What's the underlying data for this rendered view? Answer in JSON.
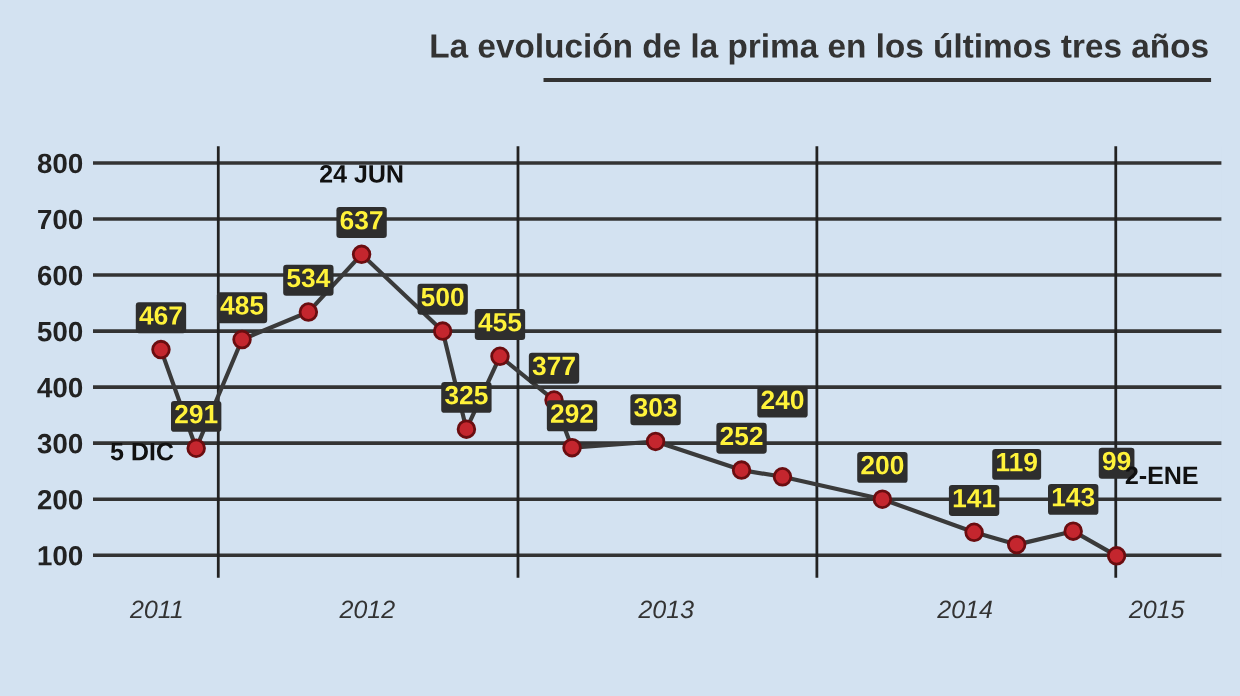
{
  "chart_data": {
    "type": "line",
    "title": "La evolución de la prima en los últimos tres años",
    "x": [
      "2011-10-23",
      "2011-12-05",
      "2012-01-30",
      "2012-04-20",
      "2012-06-24",
      "2012-10-01",
      "2012-10-30",
      "2012-12-10",
      "2013-02-14",
      "2013-03-08",
      "2013-06-18",
      "2013-10-01",
      "2013-11-20",
      "2014-03-22",
      "2014-07-12",
      "2014-09-02",
      "2014-11-10",
      "2015-01-02"
    ],
    "series": [
      {
        "color": "#3a3a3a",
        "values": [
          467,
          291,
          485,
          534,
          637,
          500,
          325,
          455,
          377,
          292,
          303,
          252,
          240,
          200,
          141,
          119,
          143,
          99
        ]
      }
    ],
    "data_labels": true,
    "marker": "circle",
    "line_style": "solid",
    "ylim": [
      60,
      830
    ],
    "yticks": [
      100,
      200,
      300,
      400,
      500,
      600,
      700,
      800
    ],
    "xlim": [
      "2011-08-01",
      "2015-05-10"
    ],
    "xticks": [
      {
        "value": "2011-10-18",
        "label": "2011"
      },
      {
        "value": "2012-07-01",
        "label": "2012"
      },
      {
        "value": "2013-07-01",
        "label": "2013"
      },
      {
        "value": "2014-07-01",
        "label": "2014"
      },
      {
        "value": "2015-02-20",
        "label": "2015"
      }
    ],
    "ref_lines": [
      {
        "axis": "x",
        "value": "2012-01-01",
        "color": "#222222"
      },
      {
        "axis": "x",
        "value": "2013-01-01",
        "color": "#222222"
      },
      {
        "axis": "x",
        "value": "2014-01-01",
        "color": "#222222"
      },
      {
        "axis": "x",
        "value": "2015-01-01",
        "color": "#222222"
      }
    ],
    "annotations": [
      {
        "text": "5 DIC",
        "x": "2011-12-05",
        "y": 291
      },
      {
        "text": "24 JUN",
        "x": "2012-06-24",
        "y": 637
      },
      {
        "text": "2-ENE",
        "x": "2015-01-02",
        "y": 99
      }
    ],
    "grid": "y"
  }
}
